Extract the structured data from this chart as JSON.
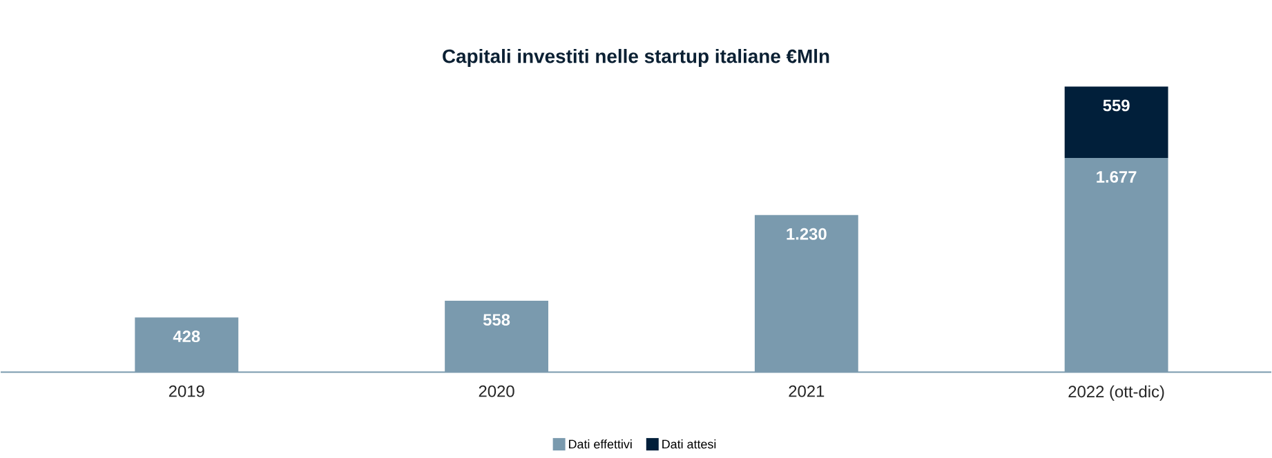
{
  "chart_data": {
    "type": "bar",
    "title": "Capitali investiti nelle startup italiane €Mln",
    "stacked": true,
    "legend": "bottom",
    "categories": [
      "2019",
      "2020",
      "2021",
      "2022 (ott-dic)"
    ],
    "series": [
      {
        "name": "Dati effettivi",
        "color": "#7a9aae",
        "values": [
          428,
          558,
          1230,
          1677
        ],
        "value_labels": [
          "428",
          "558",
          "1.230",
          "1.677"
        ]
      },
      {
        "name": "Dati attesi",
        "color": "#011f3a",
        "values": [
          null,
          null,
          null,
          559
        ],
        "value_labels": [
          null,
          null,
          null,
          "559"
        ]
      }
    ]
  }
}
